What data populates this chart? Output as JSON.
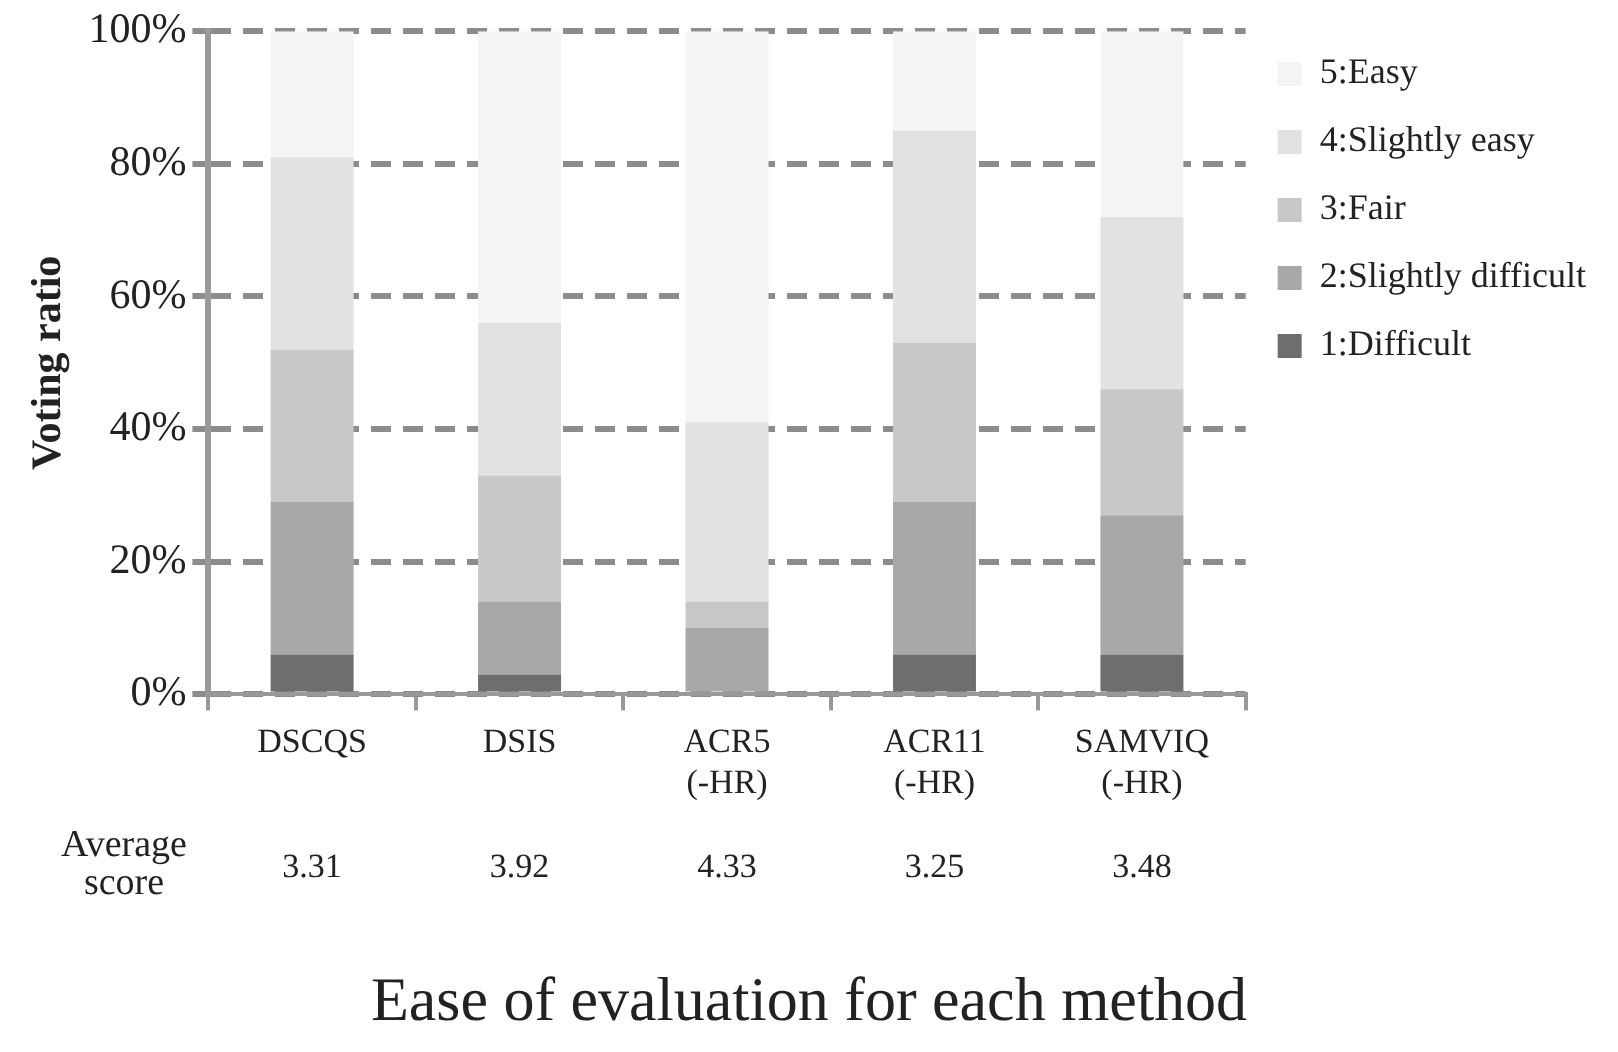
{
  "chart_data": {
    "type": "bar",
    "title": "Ease of evaluation for each method",
    "ylabel": "Voting ratio",
    "categories": [
      "DSCQS",
      "DSIS",
      "ACR5 (-HR)",
      "ACR11 (-HR)",
      "SAMVIQ (-HR)"
    ],
    "stacked": true,
    "series": [
      {
        "name": "1:Difficult",
        "color": "#6e6e6e",
        "values": [
          6,
          3,
          0,
          6,
          6
        ]
      },
      {
        "name": "2:Slightly difficult",
        "color": "#a8a8a8",
        "values": [
          23,
          11,
          10,
          23,
          21
        ]
      },
      {
        "name": "3:Fair",
        "color": "#c8c8c8",
        "values": [
          23,
          19,
          4,
          24,
          19
        ]
      },
      {
        "name": "4:Slightly easy",
        "color": "#e2e2e2",
        "values": [
          29,
          23,
          27,
          32,
          26
        ]
      },
      {
        "name": "5:Easy",
        "color": "#f4f4f4",
        "values": [
          19,
          44,
          59,
          15,
          28
        ]
      }
    ],
    "ylim": [
      0,
      100
    ],
    "yticks": [
      {
        "value": 0,
        "label": "0%"
      },
      {
        "value": 20,
        "label": "20%"
      },
      {
        "value": 40,
        "label": "40%"
      },
      {
        "value": 60,
        "label": "60%"
      },
      {
        "value": 80,
        "label": "80%"
      },
      {
        "value": 100,
        "label": "100%"
      }
    ],
    "grid": "y",
    "legend": "right",
    "annotations": [
      "Average score",
      "3.31",
      "3.92",
      "4.33",
      "3.25",
      "3.48"
    ]
  }
}
